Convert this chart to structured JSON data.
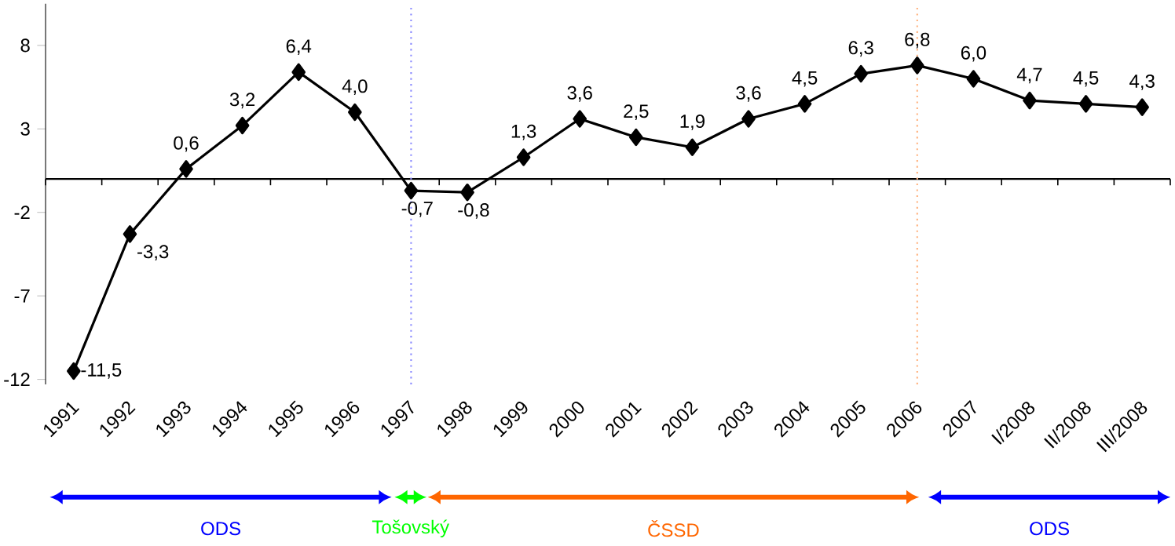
{
  "chart_data": {
    "type": "line",
    "categories": [
      "1991",
      "1992",
      "1993",
      "1994",
      "1995",
      "1996",
      "1997",
      "1998",
      "1999",
      "2000",
      "2001",
      "2002",
      "2003",
      "2004",
      "2005",
      "2006",
      "2007",
      "I/2008",
      "II/2008",
      "III/2008"
    ],
    "series": [
      {
        "color": "#000000",
        "values": [
          -11.5,
          -3.3,
          0.6,
          3.2,
          6.4,
          4.0,
          -0.7,
          -0.8,
          1.3,
          3.6,
          2.5,
          1.9,
          3.6,
          4.5,
          6.3,
          6.8,
          6.0,
          4.7,
          4.5,
          4.3
        ],
        "value_labels": [
          "-11,5",
          "-3,3",
          "0,6",
          "3,2",
          "6,4",
          "4,0",
          "-0,7",
          "-0,8",
          "1,3",
          "3,6",
          "2,5",
          "1,9",
          "3,6",
          "4,5",
          "6,3",
          "6,8",
          "6,0",
          "4,7",
          "4,5",
          "4,3"
        ]
      }
    ],
    "ylim": [
      -12.3,
      10.5
    ],
    "yticks": [
      -12,
      -7,
      -2,
      3,
      8
    ],
    "marker": "diamond",
    "line_style": "solid",
    "grid": false,
    "ref_lines": [
      {
        "axis": "x",
        "value": "1997",
        "color": "#8c8cff",
        "line_style": "dotted"
      },
      {
        "axis": "x",
        "value": "2006",
        "color": "#ffb27f",
        "line_style": "dotted"
      }
    ],
    "annotations": [
      "ODS",
      "Tošovský",
      "ČSSD",
      "ODS"
    ]
  }
}
